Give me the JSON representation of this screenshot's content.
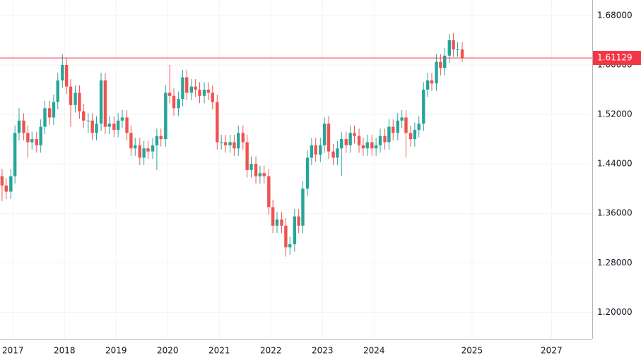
{
  "chart_data": {
    "type": "candlestick",
    "up_color": "#26a69a",
    "down_color": "#ef5350",
    "grid": true,
    "xlim": [
      2016.75,
      2028.23
    ],
    "ylim": [
      1.157,
      1.705
    ],
    "xticks": [
      2017,
      2018,
      2019,
      2020,
      2021,
      2022,
      2023,
      2024,
      {
        "value": 2025.9,
        "label": "2025"
      },
      {
        "value": 2027.44,
        "label": "2027"
      }
    ],
    "yticks": [
      {
        "value": 1.2,
        "label": "1.20000"
      },
      {
        "value": 1.28,
        "label": "1.28000"
      },
      {
        "value": 1.36,
        "label": "1.36000"
      },
      {
        "value": 1.44,
        "label": "1.44000"
      },
      {
        "value": 1.52,
        "label": "1.52000"
      },
      {
        "value": 1.6,
        "label": "1.60000"
      },
      {
        "value": 1.68,
        "label": "1.68000"
      }
    ],
    "current_price": 1.61129,
    "price_line_color": "#f23645",
    "x": [
      2016.79,
      2016.87,
      2016.96,
      2017.04,
      2017.12,
      2017.21,
      2017.29,
      2017.37,
      2017.46,
      2017.54,
      2017.62,
      2017.71,
      2017.79,
      2017.87,
      2017.96,
      2018.04,
      2018.12,
      2018.21,
      2018.29,
      2018.37,
      2018.46,
      2018.54,
      2018.62,
      2018.71,
      2018.79,
      2018.87,
      2018.96,
      2019.04,
      2019.12,
      2019.21,
      2019.29,
      2019.37,
      2019.46,
      2019.54,
      2019.62,
      2019.71,
      2019.79,
      2019.87,
      2019.96,
      2020.04,
      2020.12,
      2020.21,
      2020.29,
      2020.37,
      2020.46,
      2020.54,
      2020.62,
      2020.71,
      2020.79,
      2020.87,
      2020.96,
      2021.04,
      2021.12,
      2021.21,
      2021.29,
      2021.37,
      2021.46,
      2021.54,
      2021.62,
      2021.71,
      2021.79,
      2021.87,
      2021.96,
      2022.04,
      2022.12,
      2022.21,
      2022.29,
      2022.37,
      2022.46,
      2022.54,
      2022.62,
      2022.71,
      2022.79,
      2022.87,
      2022.96,
      2023.04,
      2023.12,
      2023.21,
      2023.29,
      2023.37,
      2023.46,
      2023.54,
      2023.62,
      2023.71,
      2023.79,
      2023.87,
      2023.96,
      2024.04,
      2024.12,
      2024.21,
      2024.29,
      2024.37,
      2024.46,
      2024.54,
      2024.62,
      2024.71,
      2024.79,
      2024.87,
      2024.96,
      2025.04,
      2025.12,
      2025.21,
      2025.29,
      2025.37,
      2025.46,
      2025.54,
      2025.62,
      2025.71
    ],
    "open": [
      1.42,
      1.405,
      1.395,
      1.42,
      1.49,
      1.51,
      1.49,
      1.475,
      1.48,
      1.47,
      1.5,
      1.53,
      1.515,
      1.54,
      1.575,
      1.6,
      1.565,
      1.535,
      1.555,
      1.525,
      1.51,
      1.51,
      1.49,
      1.505,
      1.575,
      1.5,
      1.505,
      1.495,
      1.51,
      1.515,
      1.49,
      1.465,
      1.47,
      1.45,
      1.465,
      1.46,
      1.47,
      1.485,
      1.48,
      1.555,
      1.55,
      1.53,
      1.545,
      1.58,
      1.555,
      1.565,
      1.56,
      1.55,
      1.56,
      1.555,
      1.54,
      1.475,
      1.475,
      1.47,
      1.475,
      1.465,
      1.49,
      1.475,
      1.43,
      1.44,
      1.42,
      1.425,
      1.42,
      1.37,
      1.34,
      1.35,
      1.34,
      1.305,
      1.31,
      1.355,
      1.34,
      1.4,
      1.45,
      1.47,
      1.455,
      1.47,
      1.505,
      1.46,
      1.45,
      1.465,
      1.48,
      1.47,
      1.49,
      1.485,
      1.47,
      1.465,
      1.475,
      1.465,
      1.47,
      1.485,
      1.475,
      1.5,
      1.49,
      1.51,
      1.515,
      1.49,
      1.48,
      1.495,
      1.505,
      1.56,
      1.575,
      1.57,
      1.605,
      1.595,
      1.615,
      1.64,
      1.625,
      1.625
    ],
    "high": [
      1.432,
      1.417,
      1.432,
      1.502,
      1.53,
      1.522,
      1.502,
      1.492,
      1.492,
      1.512,
      1.542,
      1.542,
      1.552,
      1.587,
      1.617,
      1.612,
      1.577,
      1.567,
      1.567,
      1.537,
      1.522,
      1.522,
      1.517,
      1.587,
      1.587,
      1.517,
      1.517,
      1.522,
      1.527,
      1.527,
      1.502,
      1.482,
      1.482,
      1.477,
      1.477,
      1.482,
      1.497,
      1.497,
      1.567,
      1.6,
      1.562,
      1.557,
      1.592,
      1.592,
      1.577,
      1.577,
      1.572,
      1.572,
      1.572,
      1.567,
      1.552,
      1.487,
      1.487,
      1.487,
      1.487,
      1.502,
      1.502,
      1.487,
      1.452,
      1.452,
      1.437,
      1.437,
      1.432,
      1.382,
      1.362,
      1.362,
      1.352,
      1.322,
      1.367,
      1.367,
      1.412,
      1.462,
      1.482,
      1.482,
      1.482,
      1.515,
      1.517,
      1.472,
      1.477,
      1.492,
      1.492,
      1.502,
      1.502,
      1.497,
      1.482,
      1.487,
      1.487,
      1.482,
      1.497,
      1.497,
      1.512,
      1.512,
      1.522,
      1.527,
      1.527,
      1.502,
      1.507,
      1.517,
      1.572,
      1.587,
      1.587,
      1.617,
      1.617,
      1.627,
      1.65,
      1.652,
      1.637,
      1.637
    ],
    "low": [
      1.38,
      1.383,
      1.383,
      1.408,
      1.478,
      1.478,
      1.45,
      1.463,
      1.458,
      1.458,
      1.488,
      1.503,
      1.503,
      1.528,
      1.563,
      1.553,
      1.5,
      1.523,
      1.513,
      1.498,
      1.49,
      1.478,
      1.478,
      1.493,
      1.488,
      1.488,
      1.483,
      1.483,
      1.498,
      1.478,
      1.453,
      1.453,
      1.438,
      1.438,
      1.448,
      1.448,
      1.43,
      1.468,
      1.468,
      1.538,
      1.518,
      1.518,
      1.533,
      1.543,
      1.543,
      1.548,
      1.538,
      1.538,
      1.543,
      1.528,
      1.463,
      1.463,
      1.458,
      1.458,
      1.453,
      1.453,
      1.463,
      1.418,
      1.418,
      1.408,
      1.408,
      1.408,
      1.358,
      1.328,
      1.328,
      1.328,
      1.29,
      1.293,
      1.298,
      1.328,
      1.328,
      1.388,
      1.438,
      1.443,
      1.443,
      1.458,
      1.448,
      1.438,
      1.438,
      1.42,
      1.458,
      1.458,
      1.473,
      1.458,
      1.453,
      1.453,
      1.453,
      1.453,
      1.458,
      1.463,
      1.463,
      1.478,
      1.478,
      1.498,
      1.45,
      1.468,
      1.468,
      1.483,
      1.493,
      1.548,
      1.558,
      1.558,
      1.583,
      1.583,
      1.603,
      1.613,
      1.613,
      1.605
    ],
    "close": [
      1.405,
      1.395,
      1.42,
      1.49,
      1.51,
      1.49,
      1.475,
      1.48,
      1.47,
      1.5,
      1.53,
      1.515,
      1.54,
      1.575,
      1.6,
      1.565,
      1.535,
      1.555,
      1.525,
      1.51,
      1.51,
      1.49,
      1.505,
      1.575,
      1.5,
      1.505,
      1.495,
      1.51,
      1.515,
      1.49,
      1.465,
      1.47,
      1.45,
      1.465,
      1.46,
      1.47,
      1.485,
      1.48,
      1.555,
      1.55,
      1.53,
      1.545,
      1.58,
      1.555,
      1.565,
      1.56,
      1.55,
      1.56,
      1.555,
      1.54,
      1.475,
      1.475,
      1.47,
      1.475,
      1.465,
      1.49,
      1.475,
      1.43,
      1.44,
      1.42,
      1.425,
      1.42,
      1.37,
      1.34,
      1.35,
      1.34,
      1.305,
      1.31,
      1.355,
      1.34,
      1.4,
      1.45,
      1.47,
      1.455,
      1.47,
      1.505,
      1.46,
      1.45,
      1.465,
      1.48,
      1.47,
      1.49,
      1.485,
      1.47,
      1.465,
      1.475,
      1.465,
      1.47,
      1.485,
      1.475,
      1.5,
      1.49,
      1.51,
      1.515,
      1.49,
      1.48,
      1.495,
      1.505,
      1.56,
      1.575,
      1.57,
      1.605,
      1.595,
      1.615,
      1.64,
      1.625,
      1.625,
      1.61129
    ]
  }
}
